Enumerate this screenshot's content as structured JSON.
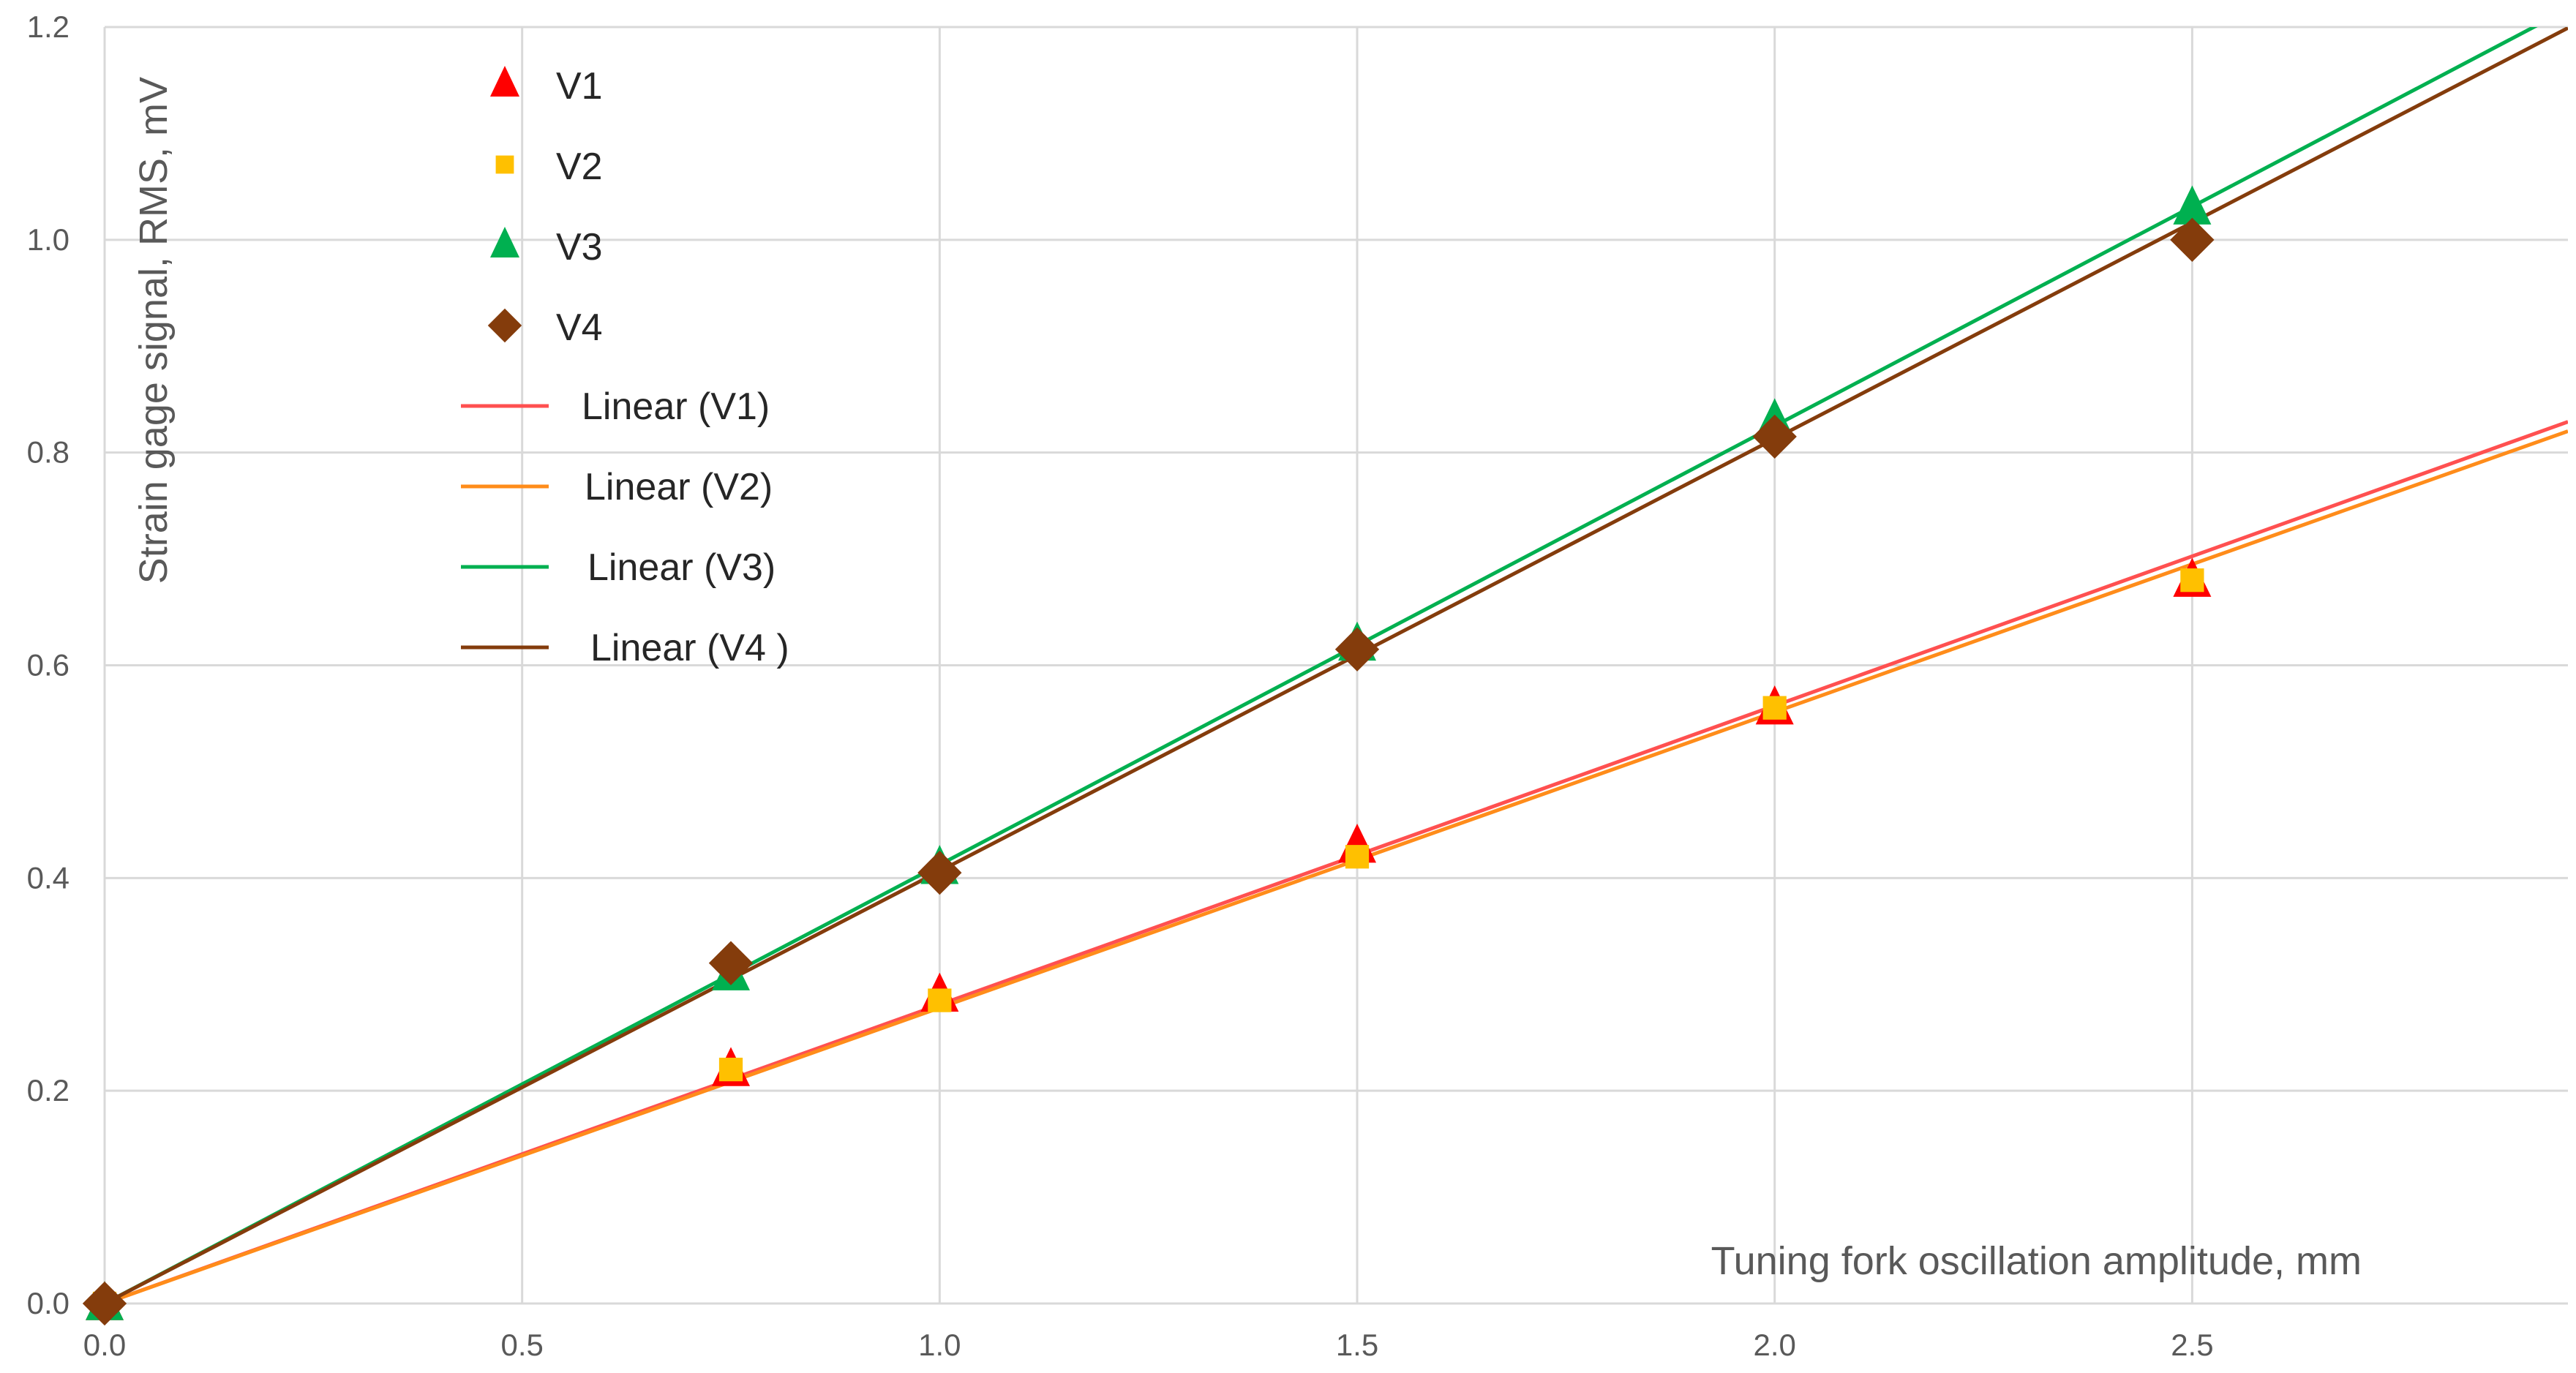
{
  "chart_data": {
    "type": "scatter",
    "xlabel": "Tuning fork oscillation amplitude, mm",
    "ylabel": "Strain gage signal, RMS, mV",
    "xlim": [
      0,
      2.95
    ],
    "ylim": [
      0,
      1.2
    ],
    "x_ticks": [
      "0.0",
      "0.5",
      "1.0",
      "1.5",
      "2.0",
      "2.5"
    ],
    "y_ticks": [
      "0.0",
      "0.2",
      "0.4",
      "0.6",
      "0.8",
      "1.0",
      "1.2"
    ],
    "grid": true,
    "legend_position": "top-left",
    "series": [
      {
        "name": "V1",
        "marker": "triangle",
        "color": "#ff0000",
        "x": [
          0,
          0.75,
          1.0,
          1.5,
          2.0,
          2.5
        ],
        "y": [
          0.0,
          0.22,
          0.29,
          0.43,
          0.56,
          0.68
        ]
      },
      {
        "name": "V2",
        "marker": "square",
        "color": "#ffc000",
        "x": [
          0,
          0.75,
          1.0,
          1.5,
          2.0,
          2.5
        ],
        "y": [
          0.0,
          0.22,
          0.285,
          0.42,
          0.56,
          0.68
        ]
      },
      {
        "name": "V3",
        "marker": "triangle",
        "color": "#00b050",
        "x": [
          0,
          0.75,
          1.0,
          1.5,
          2.0,
          2.5
        ],
        "y": [
          0.0,
          0.31,
          0.41,
          0.62,
          0.83,
          1.03
        ]
      },
      {
        "name": "V4",
        "marker": "diamond",
        "color": "#843c0c",
        "x": [
          0,
          0.75,
          1.0,
          1.5,
          2.0,
          2.5
        ],
        "y": [
          0.0,
          0.32,
          0.405,
          0.615,
          0.815,
          1.0
        ]
      }
    ],
    "trendlines": [
      {
        "name": "Linear  (V1)",
        "color": "#ff5050",
        "slope": 0.281
      },
      {
        "name": "Linear  (V2)",
        "color": "#ff8c1a",
        "slope": 0.278
      },
      {
        "name": "Linear  (V3)",
        "color": "#00b050",
        "slope": 0.4125
      },
      {
        "name": "Linear  (V4 )",
        "color": "#843c0c",
        "slope": 0.4065
      }
    ]
  }
}
